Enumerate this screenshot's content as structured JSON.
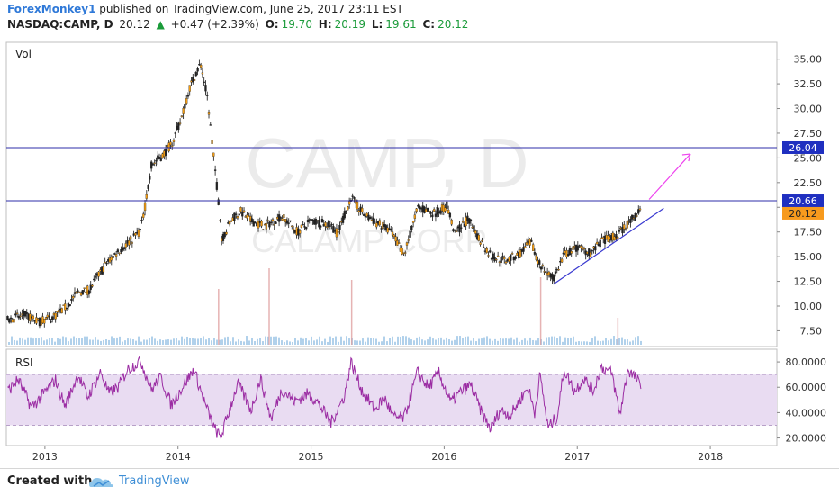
{
  "header": {
    "author": "ForexMonkey1",
    "published_text": "published on TradingView.com, June 25, 2017 23:11 EST",
    "symbol": "NASDAQ:CAMP, D",
    "last": "20.12",
    "change_arrow": "▲",
    "change": "+0.47 (+2.39%)",
    "o_label": "O:",
    "o_value": "19.70",
    "h_label": "H:",
    "h_value": "20.19",
    "l_label": "L:",
    "l_value": "19.61",
    "c_label": "C:",
    "c_value": "20.12"
  },
  "watermark": {
    "symbol": "CAMP, D",
    "company": "CALAMP CORP"
  },
  "footer": {
    "created_with": "Created with",
    "brand": "TradingView"
  },
  "colors": {
    "candle": "#f39c12",
    "wick": "#111111",
    "hline": "#2c2ca8",
    "trend": "#3a3ad0",
    "projection": "#ee44ee",
    "rsi": "#9b2ca3",
    "rsi_band": "#e9dcf2",
    "volume": "#9ec6e6",
    "price_tag": "#f79a1d",
    "level_tag": "#1f2fc0"
  },
  "chart_data": [
    {
      "type": "candlestick",
      "title": "NASDAQ:CAMP, D",
      "pane_label": "Vol",
      "x_ticks": [
        "2013",
        "2014",
        "2015",
        "2016",
        "2017",
        "2018"
      ],
      "y_ticks": [
        "35.00",
        "32.50",
        "30.00",
        "27.50",
        "25.00",
        "22.50",
        "20.00",
        "17.50",
        "15.00",
        "12.50",
        "10.00",
        "7.50"
      ],
      "ylim": [
        5.9,
        36.7
      ],
      "xlim": [
        2012.71,
        2018.5
      ],
      "series_close_path": [
        [
          2012.72,
          8.6
        ],
        [
          2012.85,
          9.1
        ],
        [
          2012.95,
          8.4
        ],
        [
          2013.05,
          8.8
        ],
        [
          2013.15,
          9.8
        ],
        [
          2013.25,
          11.4
        ],
        [
          2013.33,
          11.6
        ],
        [
          2013.45,
          14.1
        ],
        [
          2013.55,
          15.6
        ],
        [
          2013.65,
          16.7
        ],
        [
          2013.72,
          17.7
        ],
        [
          2013.76,
          20.7
        ],
        [
          2013.8,
          24.3
        ],
        [
          2013.88,
          25.2
        ],
        [
          2013.95,
          26.4
        ],
        [
          2014.02,
          28.7
        ],
        [
          2014.08,
          31.8
        ],
        [
          2014.14,
          33.8
        ],
        [
          2014.17,
          34.5
        ],
        [
          2014.22,
          31.2
        ],
        [
          2014.26,
          26.1
        ],
        [
          2014.3,
          21.2
        ],
        [
          2014.33,
          16.7
        ],
        [
          2014.4,
          18.7
        ],
        [
          2014.47,
          19.6
        ],
        [
          2014.55,
          18.6
        ],
        [
          2014.65,
          18.1
        ],
        [
          2014.78,
          19.1
        ],
        [
          2014.9,
          17.5
        ],
        [
          2015.0,
          18.6
        ],
        [
          2015.15,
          18.2
        ],
        [
          2015.2,
          17.3
        ],
        [
          2015.3,
          21.0
        ],
        [
          2015.4,
          19.2
        ],
        [
          2015.5,
          18.4
        ],
        [
          2015.6,
          17.5
        ],
        [
          2015.7,
          15.2
        ],
        [
          2015.8,
          19.9
        ],
        [
          2015.93,
          19.4
        ],
        [
          2016.02,
          20.2
        ],
        [
          2016.08,
          17.3
        ],
        [
          2016.18,
          18.8
        ],
        [
          2016.25,
          17.1
        ],
        [
          2016.35,
          15.1
        ],
        [
          2016.45,
          14.6
        ],
        [
          2016.55,
          15.1
        ],
        [
          2016.65,
          16.4
        ],
        [
          2016.72,
          14.2
        ],
        [
          2016.82,
          12.7
        ],
        [
          2016.9,
          15.2
        ],
        [
          2017.0,
          15.9
        ],
        [
          2017.1,
          15.4
        ],
        [
          2017.2,
          16.7
        ],
        [
          2017.3,
          17.1
        ],
        [
          2017.38,
          18.4
        ],
        [
          2017.45,
          19.3
        ],
        [
          2017.48,
          20.1
        ]
      ],
      "last_price": 20.12,
      "horizontal_levels": [
        {
          "label": "26.04",
          "value": 26.04
        },
        {
          "label": "20.66",
          "value": 20.66
        }
      ],
      "trendline": [
        [
          2016.82,
          12.2
        ],
        [
          2017.65,
          19.9
        ]
      ],
      "projection_arrow": [
        [
          2017.54,
          20.8
        ],
        [
          2017.85,
          25.4
        ]
      ],
      "volume_spikes": [
        [
          2014.3,
          0.62
        ],
        [
          2014.68,
          0.85
        ],
        [
          2015.3,
          0.72
        ],
        [
          2016.72,
          0.75
        ],
        [
          2017.3,
          0.3
        ]
      ]
    },
    {
      "type": "line",
      "title": "RSI",
      "y_ticks": [
        "80.0000",
        "60.0000",
        "40.0000",
        "20.0000"
      ],
      "ylim": [
        14,
        90
      ],
      "band": [
        30,
        70
      ],
      "series": [
        {
          "values": [
            [
              2012.72,
              57
            ],
            [
              2012.8,
              66
            ],
            [
              2012.9,
              44
            ],
            [
              2013.0,
              56
            ],
            [
              2013.08,
              66
            ],
            [
              2013.15,
              45
            ],
            [
              2013.25,
              70
            ],
            [
              2013.32,
              52
            ],
            [
              2013.42,
              72
            ],
            [
              2013.48,
              55
            ],
            [
              2013.55,
              60
            ],
            [
              2013.62,
              74
            ],
            [
              2013.72,
              81
            ],
            [
              2013.8,
              58
            ],
            [
              2013.87,
              68
            ],
            [
              2013.95,
              46
            ],
            [
              2014.05,
              63
            ],
            [
              2014.12,
              74
            ],
            [
              2014.2,
              48
            ],
            [
              2014.27,
              28
            ],
            [
              2014.32,
              20
            ],
            [
              2014.38,
              40
            ],
            [
              2014.45,
              63
            ],
            [
              2014.55,
              42
            ],
            [
              2014.62,
              67
            ],
            [
              2014.7,
              35
            ],
            [
              2014.78,
              58
            ],
            [
              2014.88,
              49
            ],
            [
              2014.98,
              55
            ],
            [
              2015.05,
              48
            ],
            [
              2015.15,
              32
            ],
            [
              2015.25,
              53
            ],
            [
              2015.3,
              80
            ],
            [
              2015.38,
              58
            ],
            [
              2015.48,
              42
            ],
            [
              2015.55,
              52
            ],
            [
              2015.62,
              36
            ],
            [
              2015.7,
              36
            ],
            [
              2015.8,
              72
            ],
            [
              2015.88,
              60
            ],
            [
              2015.96,
              71
            ],
            [
              2016.05,
              48
            ],
            [
              2016.12,
              56
            ],
            [
              2016.2,
              62
            ],
            [
              2016.28,
              40
            ],
            [
              2016.35,
              27
            ],
            [
              2016.42,
              42
            ],
            [
              2016.5,
              38
            ],
            [
              2016.58,
              52
            ],
            [
              2016.63,
              60
            ],
            [
              2016.68,
              40
            ],
            [
              2016.72,
              70
            ],
            [
              2016.78,
              28
            ],
            [
              2016.85,
              37
            ],
            [
              2016.9,
              74
            ],
            [
              2016.98,
              57
            ],
            [
              2017.05,
              67
            ],
            [
              2017.12,
              57
            ],
            [
              2017.18,
              76
            ],
            [
              2017.26,
              71
            ],
            [
              2017.32,
              38
            ],
            [
              2017.38,
              74
            ],
            [
              2017.45,
              66
            ],
            [
              2017.48,
              59
            ]
          ]
        }
      ]
    }
  ]
}
